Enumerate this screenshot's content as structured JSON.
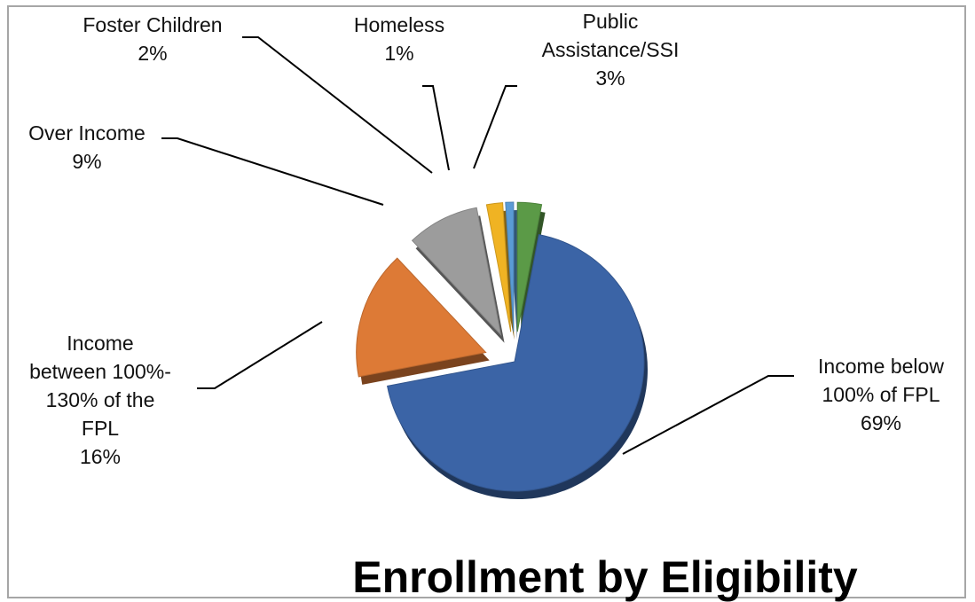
{
  "chart_data": {
    "type": "pie",
    "title": "Enrollment by Eligibility",
    "exploded": true,
    "slices": [
      {
        "label": [
          "Public",
          "Assistance/SSI"
        ],
        "percent_label": "3%",
        "value": 3,
        "color": "#5b9a47"
      },
      {
        "label": [
          "Income below",
          "100% of FPL"
        ],
        "percent_label": "69%",
        "value": 69,
        "color": "#3b64a6"
      },
      {
        "label": [
          "Income",
          "between  100%-",
          "130% of the",
          "FPL"
        ],
        "percent_label": "16%",
        "value": 16,
        "color": "#dd7a36"
      },
      {
        "label": [
          "Over Income"
        ],
        "percent_label": "9%",
        "value": 9,
        "color": "#9c9c9c"
      },
      {
        "label": [
          "Foster Children"
        ],
        "percent_label": "2%",
        "value": 2,
        "color": "#f0b323"
      },
      {
        "label": [
          "Homeless"
        ],
        "percent_label": "1%",
        "value": 1,
        "color": "#5a9bd5"
      }
    ]
  }
}
